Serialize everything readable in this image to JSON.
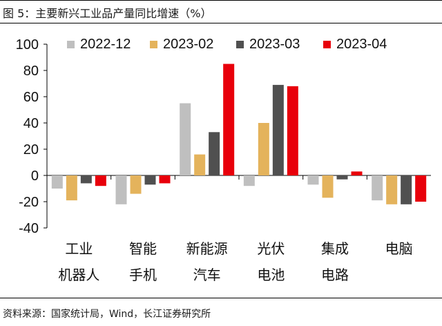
{
  "title": "图 5：主要新兴工业品产量同比增速（%）",
  "source": "资料来源：国家统计局，Wind，长江证券研究所",
  "chart_data": {
    "type": "bar",
    "title": "图 5：主要新兴工业品产量同比增速（%）",
    "xlabel": "",
    "ylabel": "",
    "ylim": [
      -40,
      100
    ],
    "yticks": [
      100,
      80,
      60,
      40,
      20,
      0,
      -20,
      -40
    ],
    "grid": false,
    "legend_position": "top",
    "categories": [
      [
        "工业",
        "机器人"
      ],
      [
        "智能",
        "手机"
      ],
      [
        "新能源",
        "汽车"
      ],
      [
        "光伏",
        "电池"
      ],
      [
        "集成",
        "电路"
      ],
      [
        "电脑"
      ]
    ],
    "series": [
      {
        "name": "2022-12",
        "color": "#bfbfbf",
        "values": [
          -10,
          -22,
          55,
          -8,
          -7,
          -19
        ]
      },
      {
        "name": "2023-02",
        "color": "#e4b35c",
        "values": [
          -19,
          -14,
          16,
          40,
          -17,
          -22
        ]
      },
      {
        "name": "2023-03",
        "color": "#505050",
        "values": [
          -6,
          -7,
          33,
          69,
          -3,
          -22
        ]
      },
      {
        "name": "2023-04",
        "color": "#e8000b",
        "values": [
          -8,
          -6,
          85,
          68,
          3,
          -20
        ]
      }
    ]
  }
}
